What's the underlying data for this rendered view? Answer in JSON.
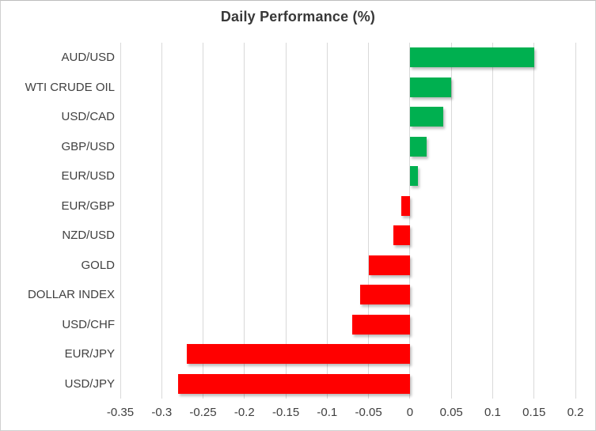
{
  "chart_data": {
    "type": "bar",
    "orientation": "horizontal",
    "title": "Daily Performance (%)",
    "categories": [
      "AUD/USD",
      "WTI CRUDE OIL",
      "USD/CAD",
      "GBP/USD",
      "EUR/USD",
      "EUR/GBP",
      "NZD/USD",
      "GOLD",
      "DOLLAR INDEX",
      "USD/CHF",
      "EUR/JPY",
      "USD/JPY"
    ],
    "values": [
      0.15,
      0.05,
      0.04,
      0.02,
      0.01,
      -0.01,
      -0.02,
      -0.05,
      -0.06,
      -0.07,
      -0.27,
      -0.28
    ],
    "xlim": [
      -0.35,
      0.2
    ],
    "x_ticks": [
      -0.35,
      -0.3,
      -0.25,
      -0.2,
      -0.15,
      -0.1,
      -0.05,
      0,
      0.05,
      0.1,
      0.15,
      0.2
    ],
    "x_tick_labels": [
      "-0.35",
      "-0.3",
      "-0.25",
      "-0.2",
      "-0.15",
      "-0.1",
      "-0.05",
      "0",
      "0.05",
      "0.1",
      "0.15",
      "0.2"
    ],
    "grid": "vertical-only",
    "legend": "none",
    "colors": {
      "positive": "#00B050",
      "negative": "#FF0000",
      "gridline": "#D9D9D9",
      "text": "#404040",
      "title": "#383838",
      "background": "#FFFFFF"
    }
  }
}
